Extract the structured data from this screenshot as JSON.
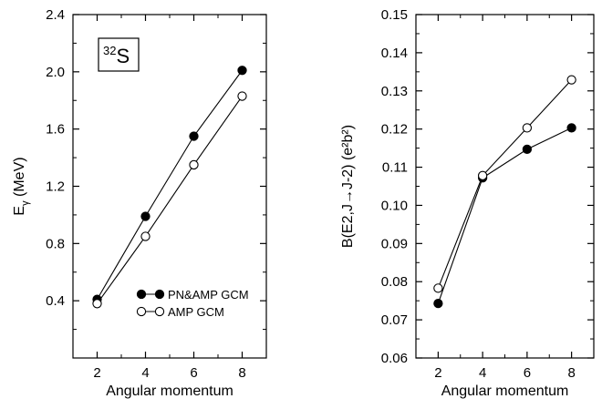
{
  "chart_data": [
    {
      "type": "line",
      "xlabel": "Angular momentum",
      "ylabel_main": "E",
      "ylabel_sub": "γ",
      "ylabel_rest": " (MeV)",
      "annotation": {
        "mass": "32",
        "symbol": "S"
      },
      "xlim": [
        1,
        9
      ],
      "ylim": [
        0,
        2.4
      ],
      "xticks": [
        2,
        4,
        6,
        8
      ],
      "yticks": [
        0.4,
        0.8,
        1.2,
        1.6,
        2.0,
        2.4
      ],
      "ytick_labels": [
        "0.4",
        "0.8",
        "1.2",
        "1.6",
        "2.0",
        "2.4"
      ],
      "legend_position": "lower-right",
      "series": [
        {
          "name": "PN&AMP GCM",
          "marker": "filled",
          "x": [
            2,
            4,
            6,
            8
          ],
          "values": [
            0.41,
            0.99,
            1.55,
            2.01
          ]
        },
        {
          "name": "AMP GCM",
          "marker": "open",
          "x": [
            2,
            4,
            6,
            8
          ],
          "values": [
            0.38,
            0.85,
            1.35,
            1.83
          ]
        }
      ]
    },
    {
      "type": "line",
      "xlabel": "Angular momentum",
      "ylabel": "B(E2,J→J-2) (e²b²)",
      "xlim": [
        1,
        9
      ],
      "ylim": [
        0.06,
        0.15
      ],
      "xticks": [
        2,
        4,
        6,
        8
      ],
      "yticks": [
        0.06,
        0.07,
        0.08,
        0.09,
        0.1,
        0.11,
        0.12,
        0.13,
        0.14,
        0.15
      ],
      "ytick_labels": [
        "0.06",
        "0.07",
        "0.08",
        "0.09",
        "0.10",
        "0.11",
        "0.12",
        "0.13",
        "0.14",
        "0.15"
      ],
      "series": [
        {
          "marker": "filled",
          "x": [
            2,
            4,
            6,
            8
          ],
          "values": [
            0.0743,
            0.1072,
            0.1147,
            0.1203
          ]
        },
        {
          "marker": "open",
          "x": [
            2,
            4,
            6,
            8
          ],
          "values": [
            0.0783,
            0.1078,
            0.1203,
            0.1329
          ]
        }
      ]
    }
  ]
}
